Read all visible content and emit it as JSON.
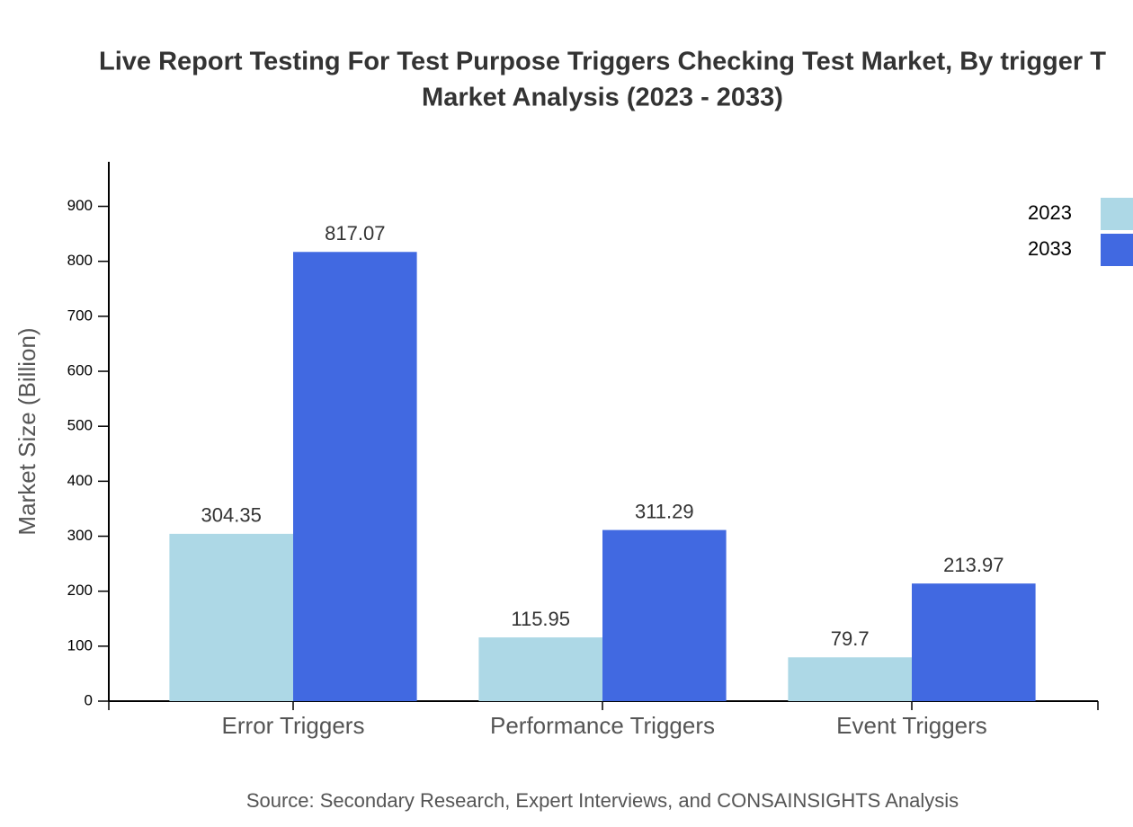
{
  "chart_data": {
    "type": "bar",
    "title": [
      "Live Report Testing For Test Purpose Triggers Checking Test Market, By trigger T",
      "Market Analysis (2023 - 2033)"
    ],
    "y_label": "Market Size (Billion)",
    "source": "Source: Secondary Research, Expert Interviews, and CONSAINSIGHTS Analysis",
    "categories": [
      "Error Triggers",
      "Performance Triggers",
      "Event Triggers"
    ],
    "series": [
      {
        "name": "2023",
        "color": "#add8e6",
        "values": [
          304.35,
          115.95,
          79.7
        ]
      },
      {
        "name": "2033",
        "color": "#4169e1",
        "values": [
          817.07,
          311.29,
          213.97
        ]
      }
    ],
    "ylim": [
      0,
      981
    ],
    "yticks": [
      0,
      100,
      200,
      300,
      400,
      500,
      600,
      700,
      800,
      900
    ],
    "legend": "top-right"
  }
}
